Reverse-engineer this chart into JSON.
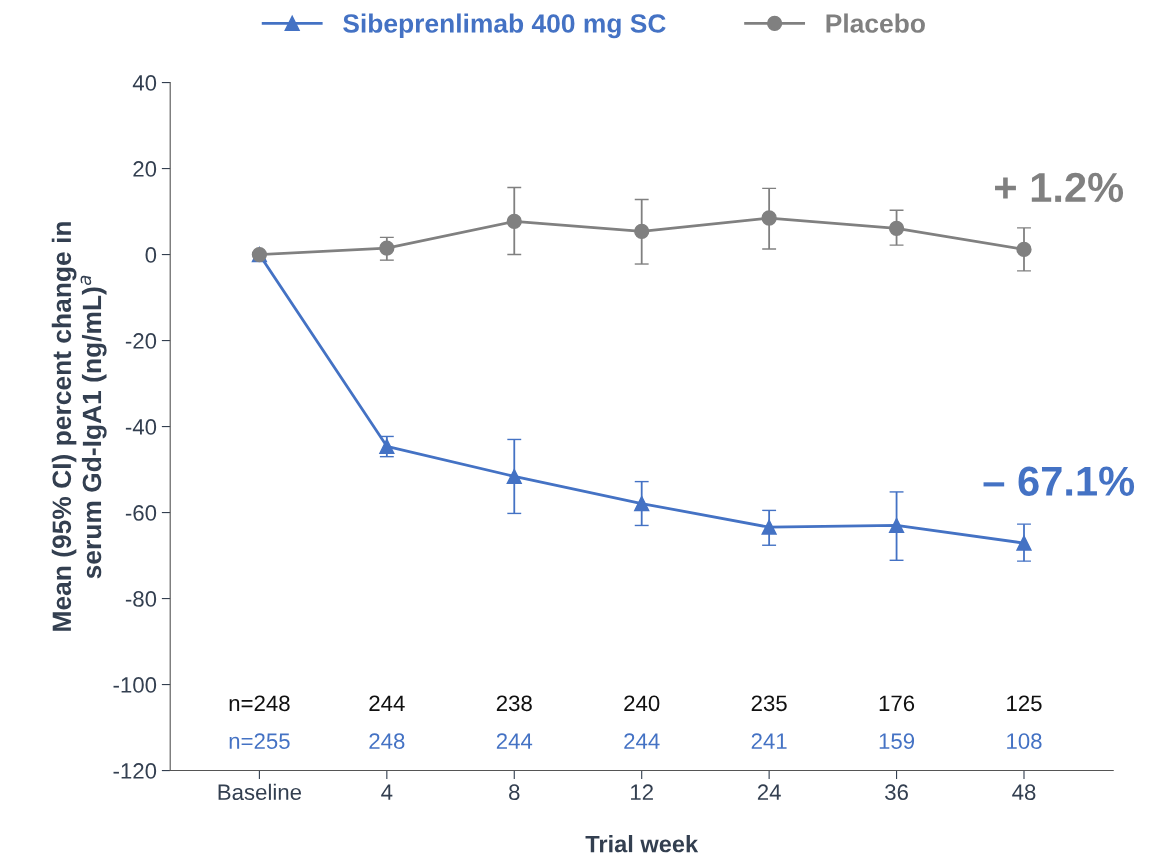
{
  "chart_data": {
    "type": "line",
    "categories": [
      "Baseline",
      "4",
      "8",
      "12",
      "24",
      "36",
      "48"
    ],
    "xlabel": "Trial week",
    "ylabel": "Mean (95% CI) percent change in\nserum Gd-IgA1 (ng/mL)$^{a}$",
    "ylim": [
      -120,
      40
    ],
    "yticks": [
      -120,
      -100,
      -80,
      -60,
      -40,
      -20,
      0,
      20,
      40
    ],
    "legend": "top",
    "grid": false,
    "series": [
      {
        "name": "Sibeprenlimab 400 mg SC",
        "color": "#4472c4",
        "marker": "triangle",
        "values": [
          0,
          -44.6,
          -51.6,
          -57.9,
          -63.4,
          -63.0,
          -67.1
        ],
        "errors": [
          null,
          [
            -47.0,
            -42.3
          ],
          [
            -60.2,
            -43.0
          ],
          [
            -63.0,
            -52.8
          ],
          [
            -67.6,
            -59.5
          ],
          [
            -71.1,
            -55.2
          ],
          [
            -71.3,
            -62.7
          ]
        ]
      },
      {
        "name": "Placebo",
        "color": "#808080",
        "marker": "circle",
        "values": [
          0,
          1.5,
          7.7,
          5.4,
          8.5,
          6.1,
          1.2
        ],
        "errors": [
          null,
          [
            -1.3,
            4.0
          ],
          [
            0.0,
            15.6
          ],
          [
            -2.2,
            12.8
          ],
          [
            1.3,
            15.4
          ],
          [
            2.2,
            10.3
          ],
          [
            -3.8,
            6.2
          ]
        ]
      }
    ],
    "annotations": [
      {
        "text": "+ 1.2%",
        "x": "48",
        "y": 1.2
      },
      {
        "text": "– 67.1%",
        "x": "48",
        "y": -67.1
      },
      "n=248",
      "244",
      "238",
      "240",
      "235",
      "176",
      "125",
      "n=255",
      "248",
      "244",
      "244",
      "241",
      "159",
      "108"
    ]
  }
}
